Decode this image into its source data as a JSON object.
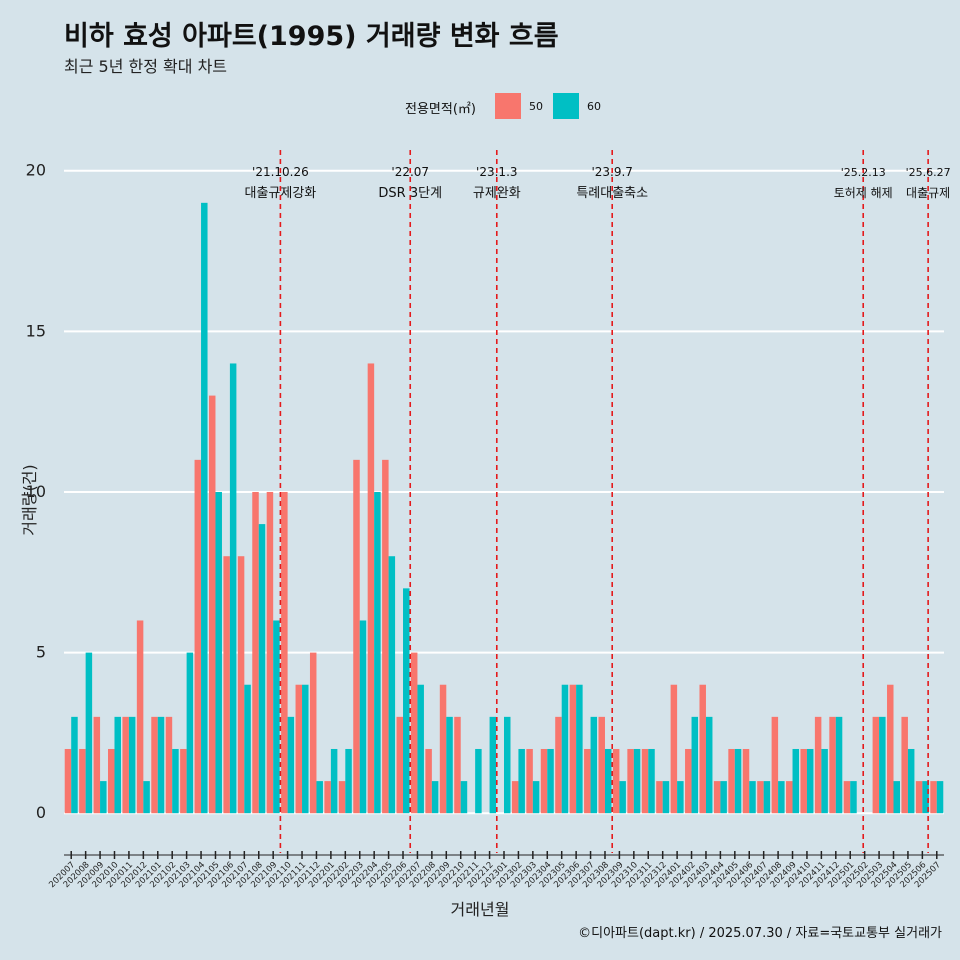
{
  "title": "비하 효성 아파트(1995) 거래량 변화 흐름",
  "subtitle": "최근 5년 한정 확대 차트",
  "caption": "©디아파트(dapt.kr) / 2025.07.30 / 자료=국토교통부 실거래가",
  "colors": {
    "s50": "#f8766d",
    "s60": "#00bfc4",
    "grid": "#ffffff",
    "vline": "#e41a1c",
    "bg": "#d5e3ea"
  },
  "chart_data": {
    "type": "bar",
    "xlabel": "거래년월",
    "ylabel": "거래량(건)",
    "ylim": [
      -1.3,
      20.8
    ],
    "yticks": [
      0,
      5,
      10,
      15,
      20
    ],
    "legend": {
      "title": "전용면적(㎡)",
      "position": "top"
    },
    "categories": [
      "202007",
      "202008",
      "202009",
      "202010",
      "202011",
      "202012",
      "202101",
      "202102",
      "202103",
      "202104",
      "202105",
      "202106",
      "202107",
      "202108",
      "202109",
      "202110",
      "202111",
      "202112",
      "202201",
      "202202",
      "202203",
      "202204",
      "202205",
      "202206",
      "202207",
      "202208",
      "202209",
      "202210",
      "202211",
      "202212",
      "202301",
      "202302",
      "202303",
      "202304",
      "202305",
      "202306",
      "202307",
      "202308",
      "202309",
      "202310",
      "202311",
      "202312",
      "202401",
      "202402",
      "202403",
      "202404",
      "202405",
      "202406",
      "202407",
      "202408",
      "202409",
      "202410",
      "202411",
      "202412",
      "202501",
      "202502",
      "202503",
      "202504",
      "202505",
      "202506",
      "202507"
    ],
    "series": [
      {
        "name": "50",
        "values": [
          2,
          2,
          3,
          2,
          3,
          6,
          3,
          3,
          2,
          11,
          13,
          8,
          8,
          10,
          10,
          10,
          4,
          5,
          1,
          1,
          11,
          14,
          11,
          3,
          5,
          2,
          4,
          3,
          0,
          0,
          0,
          1,
          2,
          2,
          3,
          4,
          2,
          3,
          2,
          2,
          2,
          1,
          4,
          2,
          4,
          1,
          2,
          2,
          1,
          3,
          1,
          2,
          3,
          3,
          1,
          0,
          3,
          4,
          3,
          1,
          1
        ]
      },
      {
        "name": "60",
        "values": [
          3,
          5,
          1,
          3,
          3,
          1,
          3,
          2,
          5,
          19,
          10,
          14,
          4,
          9,
          6,
          3,
          4,
          1,
          2,
          2,
          6,
          10,
          8,
          7,
          4,
          1,
          3,
          1,
          2,
          3,
          3,
          2,
          1,
          2,
          4,
          4,
          3,
          2,
          1,
          2,
          2,
          1,
          1,
          3,
          3,
          1,
          2,
          1,
          1,
          1,
          2,
          2,
          2,
          3,
          1,
          0,
          3,
          1,
          2,
          1,
          1
        ]
      }
    ],
    "events": [
      {
        "date": "'21.10.26",
        "label": "대출규제강화",
        "pos": 15.0
      },
      {
        "date": "'22.07",
        "label": "DSR 3단계",
        "pos": 24.0
      },
      {
        "date": "'23.1.3",
        "label": "규제완화",
        "pos": 30.0
      },
      {
        "date": "'23.9.7",
        "label": "특례대출축소",
        "pos": 38.0
      },
      {
        "date": "'25.2.13",
        "label": "토허제 해제",
        "pos": 55.4
      },
      {
        "date": "'25.6.27",
        "label": "대출규제",
        "pos": 59.9
      }
    ]
  }
}
